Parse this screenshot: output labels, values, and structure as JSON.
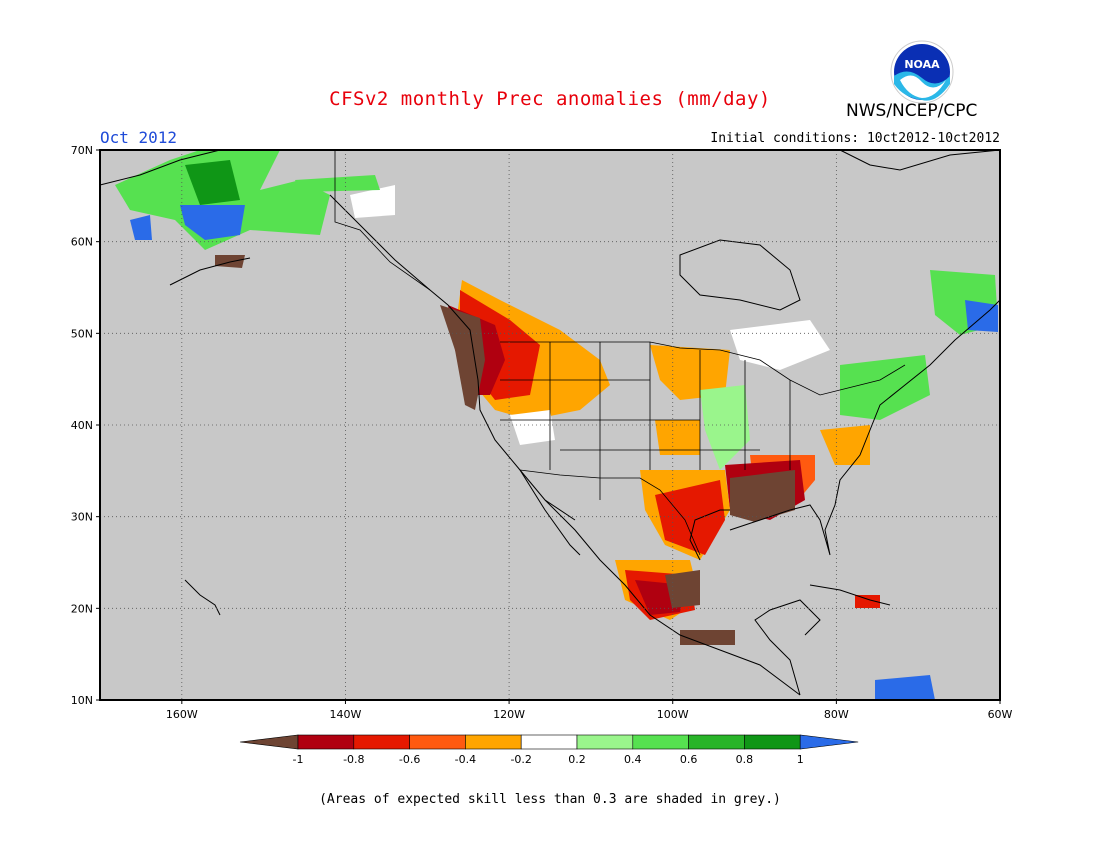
{
  "title": "CFSv2 monthly Prec anomalies (mm/day)",
  "agency": "NWS/NCEP/CPC",
  "logo_text": "NOAA",
  "forecast_month": "Oct 2012",
  "initial_conditions": "Initial conditions: 10ct2012-10ct2012",
  "footnote": "(Areas of expected skill less than 0.3 are shaded in grey.)",
  "map": {
    "lon_range": [
      -170,
      -60
    ],
    "lat_range": [
      10,
      70
    ],
    "lon_ticks": [
      "160W",
      "140W",
      "120W",
      "100W",
      "80W",
      "60W"
    ],
    "lat_ticks": [
      "70N",
      "60N",
      "50N",
      "40N",
      "30N",
      "20N",
      "10N"
    ],
    "background_grey": "#c8c8c8"
  },
  "colorbar": {
    "labels": [
      "-1",
      "-0.8",
      "-0.6",
      "-0.4",
      "-0.2",
      "0.2",
      "0.4",
      "0.6",
      "0.8",
      "1"
    ],
    "colors": [
      "#6e4433",
      "#b00010",
      "#e51800",
      "#ff5a10",
      "#ffa500",
      "#ffffff",
      "#9af58c",
      "#56e150",
      "#28b428",
      "#0f9616",
      "#2a6be8"
    ]
  }
}
